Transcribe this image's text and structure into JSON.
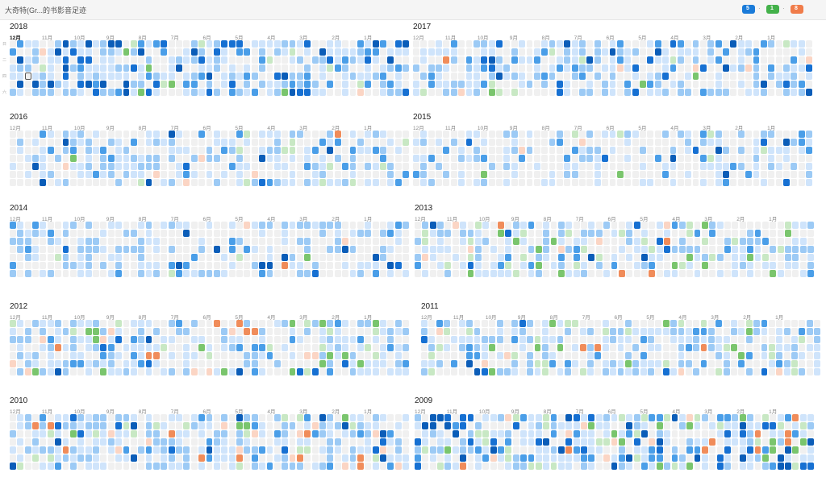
{
  "header": {
    "title": "大奇特(Gr...的书影音足迹"
  },
  "legend": {
    "items": [
      {
        "name": "book",
        "color": "#1a7bd9",
        "count": "5"
      },
      {
        "name": "movie",
        "color": "#43b14a",
        "count": "1"
      },
      {
        "name": "music",
        "color": "#f07c4a",
        "count": "8"
      }
    ],
    "separator": "·"
  },
  "months": [
    "12月",
    "11月",
    "10月",
    "9月",
    "8月",
    "7月",
    "6月",
    "5月",
    "4月",
    "3月",
    "2月",
    "1月"
  ],
  "weekdays": [
    "日",
    "二",
    "四",
    "六"
  ],
  "current_month": "12月",
  "colors": {
    "empty": "#f0f0f0",
    "level1": "#cfe4fb",
    "level2": "#9ccaf5",
    "level3": "#4a9ee8",
    "level4": "#1670d2",
    "level5": "#0b5db8",
    "movie_light": "#c8e8c4",
    "movie_mid": "#7ac56d",
    "music_light": "#fbd5c4",
    "music_mid": "#f08c5a"
  },
  "years": [
    {
      "year": "2018",
      "density": 0.74,
      "heavy": 0.18,
      "green": 0.06,
      "orange": 0.01,
      "seed": 11
    },
    {
      "year": "2017",
      "density": 0.62,
      "heavy": 0.12,
      "green": 0.06,
      "orange": 0.02,
      "seed": 23
    },
    {
      "year": "2016",
      "density": 0.5,
      "heavy": 0.08,
      "green": 0.06,
      "orange": 0.04,
      "seed": 37
    },
    {
      "year": "2015",
      "density": 0.44,
      "heavy": 0.08,
      "green": 0.05,
      "orange": 0.02,
      "seed": 41
    },
    {
      "year": "2014",
      "density": 0.48,
      "heavy": 0.05,
      "green": 0.04,
      "orange": 0.05,
      "seed": 53
    },
    {
      "year": "2013",
      "density": 0.62,
      "heavy": 0.04,
      "green": 0.12,
      "orange": 0.05,
      "seed": 67
    },
    {
      "year": "2012",
      "density": 0.6,
      "heavy": 0.06,
      "green": 0.14,
      "orange": 0.06,
      "seed": 71
    },
    {
      "year": "2011",
      "density": 0.58,
      "heavy": 0.05,
      "green": 0.14,
      "orange": 0.06,
      "seed": 83
    },
    {
      "year": "2010",
      "density": 0.66,
      "heavy": 0.08,
      "green": 0.1,
      "orange": 0.08,
      "seed": 97
    },
    {
      "year": "2009",
      "density": 0.74,
      "heavy": 0.22,
      "green": 0.12,
      "orange": 0.05,
      "seed": 101
    }
  ]
}
